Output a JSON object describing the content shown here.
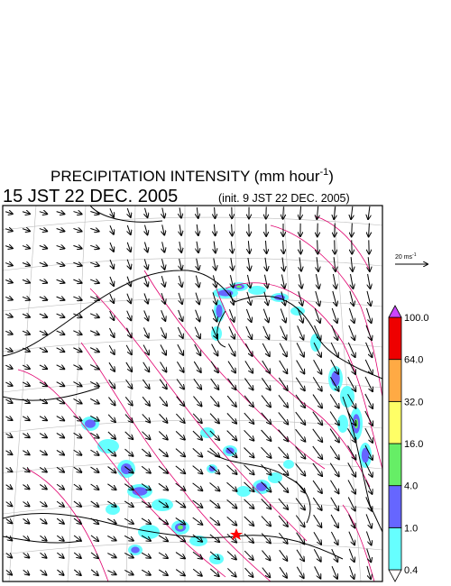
{
  "title": {
    "text": "PRECIPITATION INTENSITY (mm hour",
    "exponent": "-1",
    "close": ")"
  },
  "valid_time": "15 JST 22 DEC. 2005",
  "init_time": "(init. 9 JST 22 DEC. 2005)",
  "wind_scale": {
    "text": "20 ms",
    "exponent": "-1"
  },
  "colorbar": {
    "levels": [
      {
        "value": 0.4,
        "label": "0.4"
      },
      {
        "value": 1,
        "label": "1.0"
      },
      {
        "value": 4,
        "label": "4.0"
      },
      {
        "value": 16,
        "label": "16.0"
      },
      {
        "value": 32,
        "label": "32.0"
      },
      {
        "value": 64,
        "label": "64.0"
      },
      {
        "value": 100,
        "label": "100.0"
      }
    ],
    "colors": [
      "#ffffff",
      "#66ffff",
      "#6666ff",
      "#66ee66",
      "#ffff66",
      "#ffaa44",
      "#ee0000",
      "#cc44ff"
    ]
  }
}
